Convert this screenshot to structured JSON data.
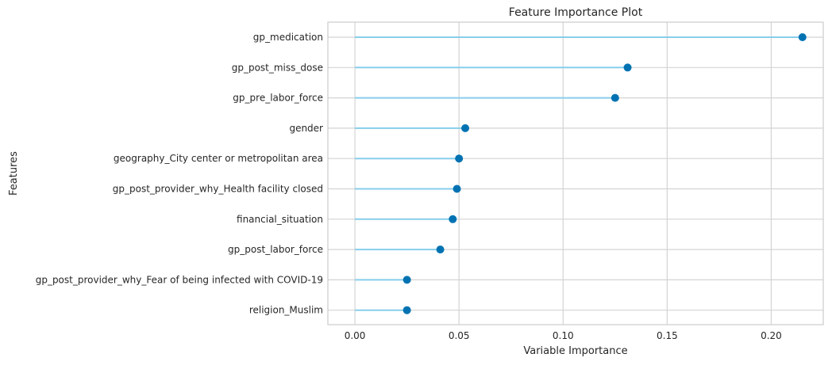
{
  "chart_data": {
    "type": "lollipop",
    "title": "Feature Importance Plot",
    "xlabel": "Variable Importance",
    "ylabel": "Features",
    "xlim": [
      -0.013,
      0.225
    ],
    "xticks": [
      0.0,
      0.05,
      0.1,
      0.15,
      0.2
    ],
    "xtick_labels": [
      "0.00",
      "0.05",
      "0.10",
      "0.15",
      "0.20"
    ],
    "grid": true,
    "categories": [
      "gp_medication",
      "gp_post_miss_dose",
      "gp_pre_labor_force",
      "gender",
      "geography_City center or metropolitan area",
      "gp_post_provider_why_Health facility closed",
      "financial_situation",
      "gp_post_labor_force",
      "gp_post_provider_why_Fear of being infected with COVID-19",
      "religion_Muslim"
    ],
    "values": [
      0.215,
      0.131,
      0.125,
      0.053,
      0.05,
      0.049,
      0.047,
      0.041,
      0.025,
      0.025
    ],
    "colors": {
      "stem": "#87ceeb",
      "marker": "#0072b2",
      "grid": "#d4d4d4",
      "axes_edge": "#cccccc",
      "background": "#ffffff"
    }
  }
}
